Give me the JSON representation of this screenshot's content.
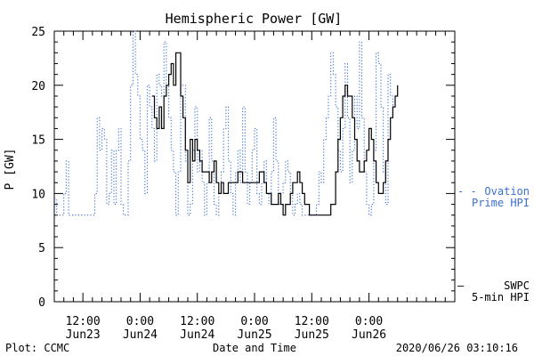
{
  "chart_data": {
    "type": "line",
    "title": "Hemispheric Power [GW]",
    "ylabel": "P [GW]",
    "xlabel": "Date and Time",
    "ylim": [
      0,
      25
    ],
    "xlim": [
      0,
      84
    ],
    "yticks": [
      0,
      5,
      10,
      15,
      20,
      25
    ],
    "xticks": [
      {
        "x": 6,
        "line1": "12:00",
        "line2": "Jun23"
      },
      {
        "x": 18,
        "line1": "0:00",
        "line2": "Jun24"
      },
      {
        "x": 30,
        "line1": "12:00",
        "line2": "Jun24"
      },
      {
        "x": 42,
        "line1": "0:00",
        "line2": "Jun25"
      },
      {
        "x": 54,
        "line1": "12:00",
        "line2": "Jun25"
      },
      {
        "x": 66,
        "line1": "0:00",
        "line2": "Jun26"
      }
    ],
    "grid": false,
    "legend_position": "right, outside plot",
    "series": [
      {
        "name_line1": "Ovation",
        "name_line2": "Prime HPI",
        "legend_glyph": "- -",
        "color": "#3b6fd0",
        "style": "dotted",
        "points": [
          [
            0,
            9.5
          ],
          [
            0.5,
            8
          ],
          [
            1,
            8
          ],
          [
            1.5,
            8
          ],
          [
            2,
            10
          ],
          [
            2.5,
            13
          ],
          [
            3,
            8
          ],
          [
            3.5,
            8
          ],
          [
            4,
            8
          ],
          [
            5,
            8
          ],
          [
            6,
            8
          ],
          [
            7,
            8
          ],
          [
            8,
            8
          ],
          [
            8.5,
            10
          ],
          [
            9,
            17
          ],
          [
            9.5,
            14
          ],
          [
            10,
            16
          ],
          [
            10.5,
            15
          ],
          [
            11,
            9
          ],
          [
            11.5,
            10
          ],
          [
            12,
            14
          ],
          [
            12.5,
            9
          ],
          [
            13,
            14
          ],
          [
            13.5,
            16
          ],
          [
            14,
            9
          ],
          [
            14.5,
            8
          ],
          [
            15,
            8
          ],
          [
            15.5,
            13
          ],
          [
            16,
            20
          ],
          [
            16.5,
            25
          ],
          [
            17,
            21
          ],
          [
            17.5,
            19
          ],
          [
            18,
            15
          ],
          [
            18.5,
            14
          ],
          [
            19,
            10
          ],
          [
            19.5,
            20
          ],
          [
            20,
            18
          ],
          [
            20.5,
            16
          ],
          [
            21,
            13
          ],
          [
            21.5,
            21
          ],
          [
            22,
            20
          ],
          [
            22.5,
            19
          ],
          [
            23,
            24
          ],
          [
            23.5,
            20
          ],
          [
            24,
            17
          ],
          [
            24.5,
            14
          ],
          [
            25,
            12
          ],
          [
            25.5,
            8
          ],
          [
            26,
            12
          ],
          [
            26.5,
            20
          ],
          [
            27,
            20
          ],
          [
            27.5,
            13
          ],
          [
            28,
            8
          ],
          [
            28.5,
            9
          ],
          [
            29,
            14
          ],
          [
            29.5,
            18
          ],
          [
            30,
            12
          ],
          [
            30.5,
            14
          ],
          [
            31,
            11
          ],
          [
            31.5,
            8
          ],
          [
            32,
            11
          ],
          [
            32.5,
            17
          ],
          [
            33,
            13
          ],
          [
            33.5,
            9
          ],
          [
            34,
            8
          ],
          [
            34.5,
            10
          ],
          [
            35,
            12
          ],
          [
            35.5,
            16
          ],
          [
            36,
            18
          ],
          [
            36.5,
            13
          ],
          [
            37,
            10
          ],
          [
            37.5,
            8
          ],
          [
            38,
            12
          ],
          [
            38.5,
            14
          ],
          [
            39,
            11
          ],
          [
            39.5,
            18
          ],
          [
            40,
            12
          ],
          [
            40.5,
            9
          ],
          [
            41,
            11
          ],
          [
            41.5,
            14
          ],
          [
            42,
            16
          ],
          [
            42.5,
            10
          ],
          [
            43,
            9
          ],
          [
            43.5,
            11
          ],
          [
            44,
            13
          ],
          [
            44.5,
            10
          ],
          [
            45,
            9
          ],
          [
            45.5,
            12
          ],
          [
            46,
            17
          ],
          [
            46.5,
            13
          ],
          [
            47,
            9
          ],
          [
            47.5,
            10
          ],
          [
            48,
            11
          ],
          [
            48.5,
            13
          ],
          [
            49,
            12
          ],
          [
            49.5,
            10
          ],
          [
            50,
            8
          ],
          [
            50.5,
            9
          ],
          [
            51,
            10
          ],
          [
            51.5,
            9
          ],
          [
            52,
            8
          ],
          [
            53,
            8
          ],
          [
            54,
            8
          ],
          [
            55,
            9
          ],
          [
            55.5,
            12
          ],
          [
            56,
            11
          ],
          [
            56.5,
            15
          ],
          [
            57,
            17
          ],
          [
            57.5,
            19
          ],
          [
            58,
            23
          ],
          [
            58.5,
            21
          ],
          [
            59,
            18
          ],
          [
            59.5,
            14
          ],
          [
            60,
            12
          ],
          [
            60.5,
            16
          ],
          [
            61,
            22
          ],
          [
            61.5,
            17
          ],
          [
            62,
            11
          ],
          [
            62.5,
            14
          ],
          [
            63,
            19
          ],
          [
            63.5,
            16
          ],
          [
            64,
            24
          ],
          [
            64.5,
            17
          ],
          [
            65,
            12
          ],
          [
            65.5,
            9
          ],
          [
            66,
            8
          ],
          [
            66.5,
            9
          ],
          [
            67,
            14
          ],
          [
            67.5,
            23
          ],
          [
            68,
            22
          ],
          [
            68.5,
            18
          ],
          [
            69,
            12
          ],
          [
            69.5,
            9
          ],
          [
            70,
            21
          ],
          [
            70.5,
            19
          ],
          [
            71,
            17
          ]
        ]
      },
      {
        "name_line1": "SWPC",
        "name_line2": "5-min HPI",
        "legend_glyph": "—",
        "color": "#000000",
        "style": "solid",
        "points": [
          [
            20.5,
            19
          ],
          [
            21,
            17
          ],
          [
            21.5,
            16
          ],
          [
            22,
            18
          ],
          [
            22.5,
            16
          ],
          [
            23,
            19
          ],
          [
            23.5,
            20
          ],
          [
            24,
            21
          ],
          [
            24.5,
            22
          ],
          [
            25,
            20
          ],
          [
            25.5,
            23
          ],
          [
            26,
            23
          ],
          [
            26.5,
            19
          ],
          [
            27,
            17
          ],
          [
            27.5,
            14
          ],
          [
            28,
            11
          ],
          [
            28.5,
            15
          ],
          [
            29,
            13
          ],
          [
            29.5,
            15
          ],
          [
            30,
            14
          ],
          [
            30.5,
            13
          ],
          [
            31,
            12
          ],
          [
            31.5,
            12
          ],
          [
            32,
            12
          ],
          [
            32.5,
            11
          ],
          [
            33,
            12
          ],
          [
            33.5,
            13
          ],
          [
            34,
            11
          ],
          [
            34.5,
            10
          ],
          [
            35,
            11
          ],
          [
            35.5,
            10
          ],
          [
            36,
            10
          ],
          [
            36.5,
            11
          ],
          [
            37,
            11
          ],
          [
            37.5,
            11
          ],
          [
            38,
            11
          ],
          [
            38.5,
            12
          ],
          [
            39,
            12
          ],
          [
            39.5,
            11
          ],
          [
            40,
            11
          ],
          [
            40.5,
            11
          ],
          [
            41,
            11
          ],
          [
            41.5,
            11
          ],
          [
            42,
            11
          ],
          [
            42.5,
            11
          ],
          [
            43,
            12
          ],
          [
            43.5,
            12
          ],
          [
            44,
            11
          ],
          [
            44.5,
            10
          ],
          [
            45,
            10
          ],
          [
            45.5,
            9
          ],
          [
            46,
            9
          ],
          [
            46.5,
            9
          ],
          [
            47,
            10
          ],
          [
            47.5,
            9
          ],
          [
            48,
            8
          ],
          [
            48.5,
            9
          ],
          [
            49,
            9
          ],
          [
            49.5,
            10
          ],
          [
            50,
            11
          ],
          [
            50.5,
            11
          ],
          [
            51,
            12
          ],
          [
            51.5,
            11
          ],
          [
            52,
            10
          ],
          [
            52.5,
            9
          ],
          [
            53,
            9
          ],
          [
            53.5,
            8
          ],
          [
            54,
            8
          ],
          [
            54.5,
            8
          ],
          [
            55,
            8
          ],
          [
            55.5,
            8
          ],
          [
            56,
            8
          ],
          [
            56.5,
            8
          ],
          [
            57,
            8
          ],
          [
            57.5,
            8
          ],
          [
            58,
            9
          ],
          [
            58.5,
            9
          ],
          [
            59,
            12
          ],
          [
            59.5,
            15
          ],
          [
            60,
            17
          ],
          [
            60.5,
            19
          ],
          [
            61,
            20
          ],
          [
            61.5,
            19
          ],
          [
            62,
            19
          ],
          [
            62.5,
            17
          ],
          [
            63,
            15
          ],
          [
            63.5,
            13
          ],
          [
            64,
            12
          ],
          [
            64.5,
            12
          ],
          [
            65,
            13
          ],
          [
            65.5,
            14
          ],
          [
            66,
            16
          ],
          [
            66.5,
            15
          ],
          [
            67,
            13
          ],
          [
            67.5,
            11
          ],
          [
            68,
            10
          ],
          [
            68.5,
            10
          ],
          [
            69,
            11
          ],
          [
            69.5,
            13
          ],
          [
            70,
            15
          ],
          [
            70.5,
            17
          ],
          [
            71,
            18
          ],
          [
            71.5,
            19
          ],
          [
            72,
            20
          ]
        ]
      }
    ]
  },
  "footer": {
    "left": "Plot: CCMC",
    "center": "Date and Time",
    "right": "2020/06/26 03:10:16"
  }
}
